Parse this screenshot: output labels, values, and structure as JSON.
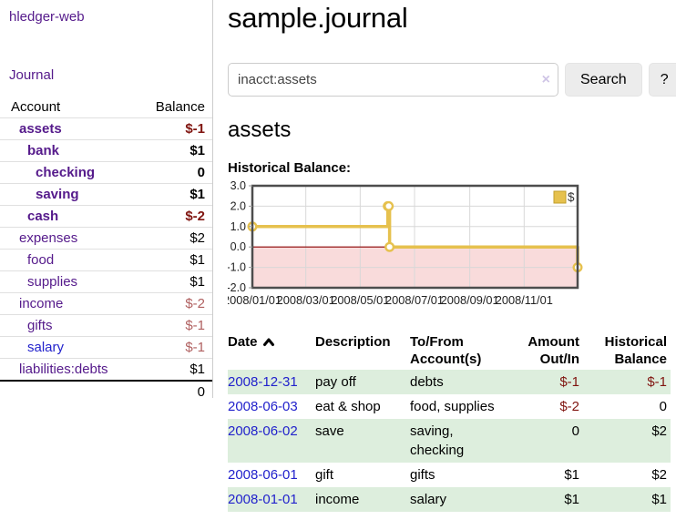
{
  "app": {
    "title": "hledger-web",
    "nav_journal": "Journal"
  },
  "sidebar": {
    "headers": [
      "Account",
      "Balance"
    ],
    "accounts": [
      {
        "name": "assets",
        "depth": 1,
        "bold": true,
        "balance": "$-1",
        "balance_class": "neg-strong",
        "link_color": "purple"
      },
      {
        "name": "bank",
        "depth": 2,
        "bold": true,
        "balance": "$1",
        "balance_class": "",
        "link_color": "purple"
      },
      {
        "name": "checking",
        "depth": 3,
        "bold": true,
        "balance": "0",
        "balance_class": "",
        "link_color": "purple"
      },
      {
        "name": "saving",
        "depth": 3,
        "bold": true,
        "balance": "$1",
        "balance_class": "",
        "link_color": "purple"
      },
      {
        "name": "cash",
        "depth": 2,
        "bold": true,
        "balance": "$-2",
        "balance_class": "neg-strong",
        "link_color": "purple"
      },
      {
        "name": "expenses",
        "depth": 1,
        "bold": false,
        "balance": "$2",
        "balance_class": "",
        "link_color": "purple"
      },
      {
        "name": "food",
        "depth": 2,
        "bold": false,
        "balance": "$1",
        "balance_class": "",
        "link_color": "purple"
      },
      {
        "name": "supplies",
        "depth": 2,
        "bold": false,
        "balance": "$1",
        "balance_class": "",
        "link_color": "purple"
      },
      {
        "name": "income",
        "depth": 1,
        "bold": false,
        "balance": "$-2",
        "balance_class": "neg-soft",
        "link_color": "purple"
      },
      {
        "name": "gifts",
        "depth": 2,
        "bold": false,
        "balance": "$-1",
        "balance_class": "neg-soft",
        "link_color": "purple"
      },
      {
        "name": "salary",
        "depth": 2,
        "bold": false,
        "balance": "$-1",
        "balance_class": "neg-soft",
        "link_color": "blue"
      },
      {
        "name": "liabilities:debts",
        "depth": 1,
        "bold": false,
        "balance": "$1",
        "balance_class": "",
        "link_color": "purple"
      }
    ],
    "total": "0"
  },
  "main": {
    "title": "sample.journal",
    "search": {
      "value": "inacct:assets",
      "clear_icon": "×",
      "button_label": "Search",
      "help_label": "?"
    },
    "account_heading": "assets",
    "chart_label": "Historical Balance:",
    "register": {
      "headers": [
        "Date",
        "Description",
        "To/From Account(s)",
        "Amount Out/In",
        "Historical Balance"
      ],
      "sort": {
        "column": "Date",
        "direction": "ascending"
      },
      "rows": [
        {
          "date": "2008-12-31",
          "description": "pay off",
          "accounts": "debts",
          "amount": "$-1",
          "amount_negative": true,
          "balance": "$-1",
          "balance_negative": true
        },
        {
          "date": "2008-06-03",
          "description": "eat & shop",
          "accounts": "food, supplies",
          "amount": "$-2",
          "amount_negative": true,
          "balance": "0",
          "balance_negative": false
        },
        {
          "date": "2008-06-02",
          "description": "save",
          "accounts": "saving, checking",
          "amount": "0",
          "amount_negative": false,
          "balance": "$2",
          "balance_negative": false
        },
        {
          "date": "2008-06-01",
          "description": "gift",
          "accounts": "gifts",
          "amount": "$1",
          "amount_negative": false,
          "balance": "$2",
          "balance_negative": false
        },
        {
          "date": "2008-01-01",
          "description": "income",
          "accounts": "salary",
          "amount": "$1",
          "amount_negative": false,
          "balance": "$1",
          "balance_negative": false
        }
      ]
    }
  },
  "chart_data": {
    "type": "line",
    "title": "Historical Balance:",
    "step": true,
    "series": [
      {
        "name": "$",
        "points": [
          [
            "2008-01-01",
            1
          ],
          [
            "2008-06-01",
            2
          ],
          [
            "2008-06-02",
            2
          ],
          [
            "2008-06-03",
            0
          ],
          [
            "2008-12-31",
            -1
          ]
        ]
      }
    ],
    "x_range": [
      "2008-01-01",
      "2008-12-31"
    ],
    "x_ticks": [
      "2008/01/01",
      "2008/03/01",
      "2008/05/01",
      "2008/07/01",
      "2008/09/01",
      "2008/11/01"
    ],
    "y_ticks": [
      3,
      2,
      1,
      0,
      -1,
      -2
    ],
    "y_tick_labels": [
      "3.0",
      "2.0",
      "1.0",
      "0.0",
      "-1.0",
      "-2.0"
    ],
    "ylim": [
      -2,
      3
    ],
    "grid": true,
    "legend": {
      "label": "$",
      "position": "top-right"
    },
    "colors": {
      "line": "#e6c14e",
      "marker_fill": "#ffffff",
      "legend_border": "#c19e2a",
      "negative_fill": "#f9dbdb",
      "zero_line": "#8b0000",
      "grid": "#d8d8d8",
      "border": "#4d4d4d",
      "axis_text": "#222222"
    }
  }
}
